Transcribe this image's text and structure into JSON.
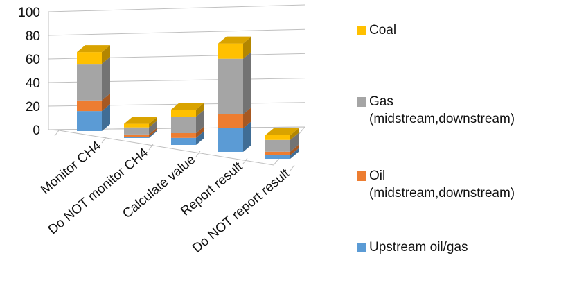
{
  "chart_data": {
    "type": "bar",
    "stacked": true,
    "three_d": true,
    "categories": [
      "Monitor CH4",
      "Do NOT monitor CH4",
      "Calculate value",
      "Report result",
      "Do NOT report result"
    ],
    "series": [
      {
        "name": "Upstream oil/gas",
        "color": "#5B9BD5",
        "values": [
          17,
          1,
          6,
          20,
          3
        ]
      },
      {
        "name": "Oil\n(midstream,downstream)",
        "color": "#ED7D31",
        "values": [
          9,
          2,
          4,
          12,
          3
        ]
      },
      {
        "name": "Gas\n(midstream,downstream)",
        "color": "#A5A5A5",
        "values": [
          31,
          6,
          14,
          47,
          10
        ]
      },
      {
        "name": "Coal",
        "color": "#FFC000",
        "values": [
          10,
          3,
          6,
          13,
          4
        ]
      }
    ],
    "y_ticks": [
      "0",
      "20",
      "40",
      "60",
      "80",
      "100"
    ],
    "ylim": [
      0,
      100
    ],
    "grid": true,
    "legend_position": "right"
  }
}
